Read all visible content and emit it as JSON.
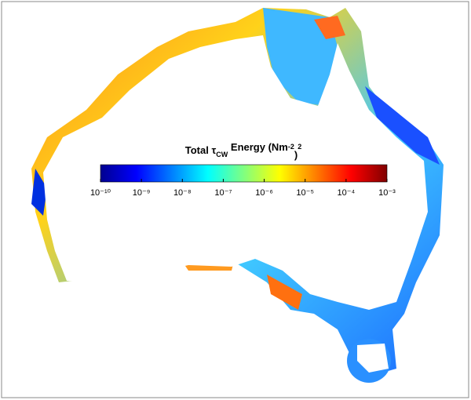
{
  "map": {
    "colorbar": {
      "title_parts": [
        "Total τ",
        "CW",
        " Energy (Nm",
        "-2",
        ")",
        "2"
      ],
      "clim": [
        1e-10,
        0.001
      ],
      "log": true,
      "colors": [
        "#00008f",
        "#0000ff",
        "#0080ff",
        "#00ffff",
        "#80ff80",
        "#ffff00",
        "#ff8000",
        "#ff0000",
        "#800000"
      ],
      "ticks": [
        {
          "value": 1e-10,
          "label": "10⁻¹⁰"
        },
        {
          "value": 1e-09,
          "label": "10⁻⁹"
        },
        {
          "value": 1e-08,
          "label": "10⁻⁸"
        },
        {
          "value": 1e-07,
          "label": "10⁻⁷"
        },
        {
          "value": 1e-06,
          "label": "10⁻⁶"
        },
        {
          "value": 1e-05,
          "label": "10⁻⁵"
        },
        {
          "value": 0.0001,
          "label": "10⁻⁴"
        },
        {
          "value": 0.001,
          "label": "10⁻³"
        }
      ]
    }
  }
}
